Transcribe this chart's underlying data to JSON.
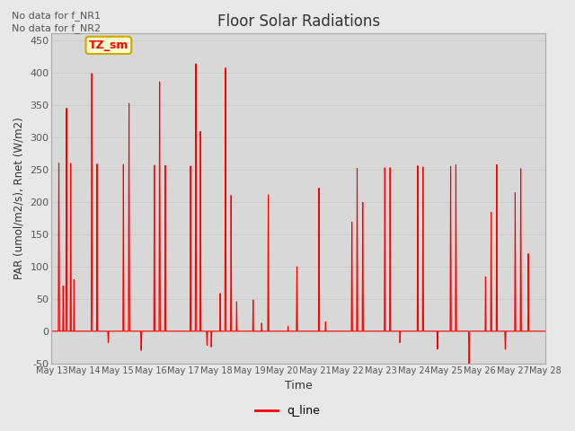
{
  "title": "Floor Solar Radiations",
  "ylabel": "PAR (umol/m2/s), Rnet (W/m2)",
  "xlabel": "Time",
  "ylim": [
    -50,
    460
  ],
  "xlim": [
    13,
    28
  ],
  "fig_bg_color": "#e8e8e8",
  "plot_bg_color": "#d8d8d8",
  "line_color": "red",
  "legend_label": "q_line",
  "note1": "No data for f_NR1",
  "note2": "No data for f_NR2",
  "label_box_text": "TZ_sm",
  "label_box_color": "#ffffcc",
  "label_box_edge": "#ccaa00",
  "grid_color": "#cccccc",
  "xtick_positions": [
    13,
    14,
    15,
    16,
    17,
    18,
    19,
    20,
    21,
    22,
    23,
    24,
    25,
    26,
    27,
    28
  ],
  "xtick_labels": [
    "May 13",
    "May 14",
    "May 15",
    "May 16",
    "May 17",
    "May 18",
    "May 19",
    "May 20",
    "May 21",
    "May 22",
    "May 23",
    "May 24",
    "May 25",
    "May 26",
    "May 27",
    "May 28"
  ],
  "ytick_positions": [
    -50,
    0,
    50,
    100,
    150,
    200,
    250,
    300,
    350,
    400,
    450
  ],
  "ytick_labels": [
    "-50",
    "0",
    "50",
    "100",
    "150",
    "200",
    "250",
    "300",
    "350",
    "400",
    "450"
  ]
}
